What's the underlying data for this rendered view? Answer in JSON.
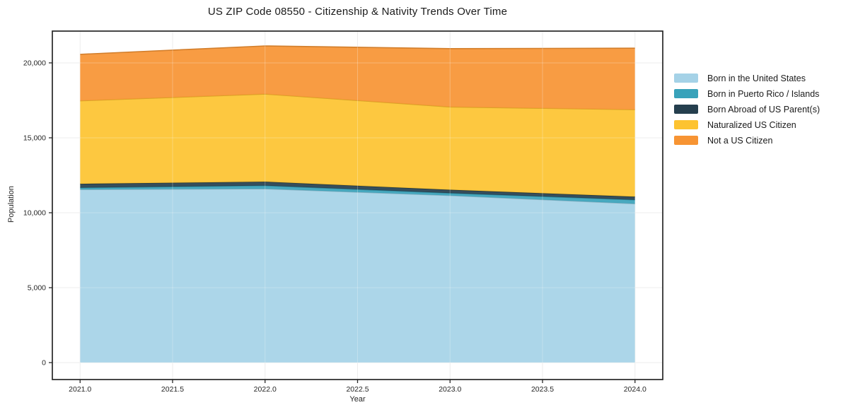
{
  "chart": {
    "title": "US ZIP Code 08550 - Citizenship & Nativity Trends Over Time",
    "xlabel": "Year",
    "ylabel": "Population"
  },
  "chart_data": {
    "type": "area",
    "stacked": true,
    "title": "US ZIP Code 08550 - Citizenship & Nativity Trends Over Time",
    "xlabel": "Year",
    "ylabel": "Population",
    "x": [
      2021,
      2022,
      2023,
      2024
    ],
    "series": [
      {
        "name": "Born in the United States",
        "color": "#a5d2e7",
        "values": [
          11550,
          11600,
          11150,
          10600
        ]
      },
      {
        "name": "Born in Puerto Rico / Islands",
        "color": "#38a2ba",
        "values": [
          120,
          210,
          160,
          260
        ]
      },
      {
        "name": "Born Abroad of US Parent(s)",
        "color": "#253f4e",
        "values": [
          260,
          260,
          220,
          210
        ]
      },
      {
        "name": "Naturalized US Citizen",
        "color": "#fdc330",
        "values": [
          5540,
          5850,
          5530,
          5810
        ]
      },
      {
        "name": "Not a US Citizen",
        "color": "#f79433",
        "values": [
          3100,
          3210,
          3890,
          4100
        ]
      }
    ],
    "stack_totals": [
      20570,
      21130,
      20950,
      20980
    ],
    "x_ticks": [
      2021.0,
      2021.5,
      2022.0,
      2022.5,
      2023.0,
      2023.5,
      2024.0
    ],
    "x_tick_labels": [
      "2021.0",
      "2021.5",
      "2022.0",
      "2022.5",
      "2023.0",
      "2023.5",
      "2024.0"
    ],
    "y_ticks": [
      0,
      5000,
      10000,
      15000,
      20000
    ],
    "y_tick_labels": [
      "0",
      "5,000",
      "10,000",
      "15,000",
      "20,000"
    ],
    "xlim": [
      2020.85,
      2024.15
    ],
    "ylim": [
      -1130,
      22120
    ],
    "grid": true,
    "legend_position": "right-outside",
    "colors": {
      "background": "#ffffff",
      "grid": "#e7e7e7",
      "spine": "#262626",
      "tick_text": "#262626",
      "title_text": "#1a1a1a"
    }
  }
}
